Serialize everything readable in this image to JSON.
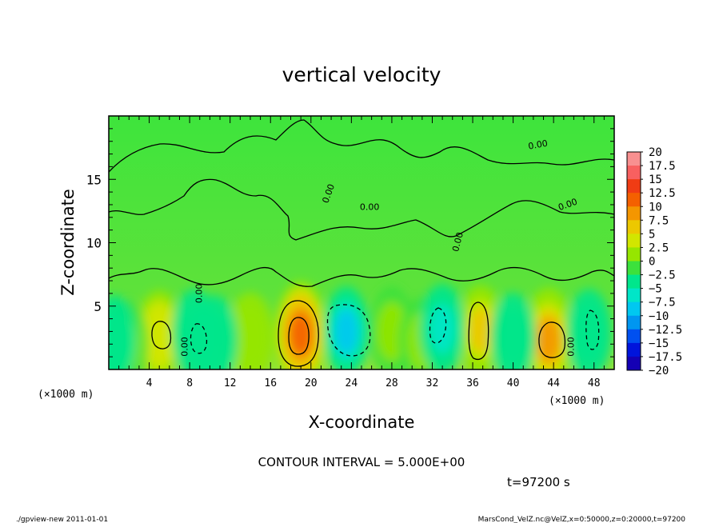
{
  "chart_data": {
    "type": "heatmap",
    "title": "vertical velocity",
    "xlabel": "X-coordinate",
    "ylabel": "Z-coordinate",
    "x_unit_left": "(×1000 m)",
    "x_unit_right": "(×1000 m)",
    "xlim": [
      0,
      50
    ],
    "ylim": [
      0,
      20
    ],
    "x_ticks": [
      "4",
      "8",
      "12",
      "16",
      "20",
      "24",
      "28",
      "32",
      "36",
      "40",
      "44",
      "48"
    ],
    "y_ticks": [
      "5",
      "10",
      "15"
    ],
    "colorbar": {
      "labels": [
        "20",
        "17.5",
        "15",
        "12.5",
        "10",
        "7.5",
        "5",
        "2.5",
        "0",
        "−2.5",
        "−5",
        "−7.5",
        "−10",
        "−12.5",
        "−15",
        "−17.5",
        "−20"
      ],
      "colors": [
        "#f89090",
        "#f86060",
        "#f03c14",
        "#f46000",
        "#f49600",
        "#ecc800",
        "#d2e600",
        "#96e600",
        "#3ce13c",
        "#00e68c",
        "#00e6c8",
        "#00c8f0",
        "#0096f0",
        "#0050f0",
        "#0014dc",
        "#1400b4",
        "#5000b4"
      ]
    },
    "contour_interval_text": "CONTOUR INTERVAL = 5.000E+00",
    "contour_label": "0.00",
    "time_text": "t=97200 s",
    "updrafts": [
      {
        "x": 5.0,
        "z": 2.7,
        "w": 6
      },
      {
        "x": 19.0,
        "z": 2.8,
        "w": 13
      },
      {
        "x": 36.8,
        "z": 3.1,
        "w": 7
      },
      {
        "x": 43.5,
        "z": 2.3,
        "w": 9
      },
      {
        "x": 1.6,
        "z": 2.0,
        "w": 2.5
      },
      {
        "x": 14.0,
        "z": 2.5,
        "w": 3
      },
      {
        "x": 28.0,
        "z": 3.0,
        "w": 2
      },
      {
        "x": 31.0,
        "z": 2.2,
        "w": 2
      }
    ],
    "downdrafts": [
      {
        "x": 8.5,
        "z": 2.8,
        "w": -3.5
      },
      {
        "x": 10.5,
        "z": 2.3,
        "w": -3
      },
      {
        "x": 23.5,
        "z": 3.0,
        "w": -7
      },
      {
        "x": 33.0,
        "z": 3.2,
        "w": -4
      },
      {
        "x": 40.0,
        "z": 2.5,
        "w": -3
      },
      {
        "x": 47.5,
        "z": 2.8,
        "w": -3
      },
      {
        "x": 0.5,
        "z": 2.3,
        "w": -2.5
      }
    ]
  },
  "footer": {
    "left": "./gpview-new  2011-01-01",
    "right": "MarsCond_VelZ.nc@VelZ,x=0:50000,z=0:20000,t=97200"
  }
}
